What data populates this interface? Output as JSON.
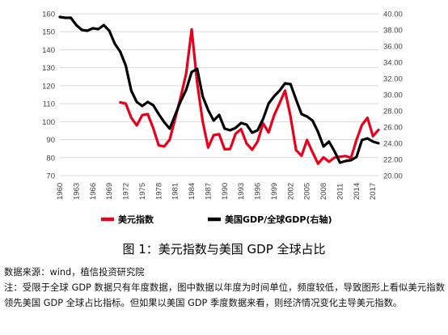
{
  "chart_data": {
    "type": "line",
    "x": [
      "1960",
      "1961",
      "1962",
      "1963",
      "1964",
      "1965",
      "1966",
      "1967",
      "1968",
      "1969",
      "1970",
      "1971",
      "1972",
      "1973",
      "1974",
      "1975",
      "1976",
      "1977",
      "1978",
      "1979",
      "1980",
      "1981",
      "1982",
      "1983",
      "1984",
      "1985",
      "1986",
      "1987",
      "1988",
      "1989",
      "1990",
      "1991",
      "1992",
      "1993",
      "1994",
      "1995",
      "1996",
      "1997",
      "1998",
      "1999",
      "2000",
      "2001",
      "2002",
      "2003",
      "2004",
      "2005",
      "2006",
      "2007",
      "2008",
      "2009",
      "2010",
      "2011",
      "2012",
      "2013",
      "2014",
      "2015",
      "2016",
      "2017",
      "2018"
    ],
    "x_tick_labels": [
      "1960",
      "1963",
      "1966",
      "1969",
      "1972",
      "1975",
      "1978",
      "1981",
      "1984",
      "1987",
      "1990",
      "1993",
      "1996",
      "1999",
      "2002",
      "2005",
      "2008",
      "2011",
      "2014",
      "2017"
    ],
    "y_left": {
      "ylim": [
        70,
        160
      ],
      "ticks": [
        "70",
        "80",
        "90",
        "100",
        "110",
        "120",
        "130",
        "140",
        "150",
        "160"
      ]
    },
    "y_right": {
      "ylim": [
        20,
        40
      ],
      "ticks": [
        "20.00",
        "22.00",
        "24.00",
        "26.00",
        "28.00",
        "30.00",
        "32.00",
        "34.00",
        "36.00",
        "38.00",
        "40.00"
      ]
    },
    "grid": true,
    "legend_position": "bottom",
    "series": [
      {
        "name": "美元指数",
        "axis": "left",
        "color": "#e8001c",
        "values": [
          null,
          null,
          null,
          null,
          null,
          null,
          null,
          null,
          null,
          null,
          null,
          110.7,
          110.0,
          102.2,
          97.9,
          103.6,
          104.2,
          96.4,
          86.8,
          86.2,
          90.0,
          101.7,
          113.6,
          126.8,
          151.3,
          121.5,
          100.2,
          85.6,
          92.5,
          93.0,
          84.6,
          84.8,
          93.3,
          95.8,
          87.8,
          84.4,
          88.9,
          99.0,
          94.0,
          103.5,
          110.2,
          117.3,
          102.8,
          84.2,
          81.0,
          89.8,
          83.0,
          76.6,
          80.1,
          77.7,
          80.0,
          80.5,
          80.9,
          79.8,
          89.8,
          98.2,
          102.1,
          91.9,
          95.4
        ]
      },
      {
        "name": "美国GDP/全球GDP(右轴)",
        "axis": "right",
        "color": "#000000",
        "values": [
          39.6,
          39.5,
          39.5,
          38.6,
          38.0,
          37.9,
          38.2,
          38.1,
          38.6,
          37.9,
          36.3,
          35.3,
          33.6,
          30.5,
          29.1,
          28.6,
          29.1,
          28.7,
          27.6,
          26.6,
          25.8,
          27.5,
          29.2,
          30.6,
          32.8,
          33.2,
          29.8,
          28.1,
          26.8,
          27.5,
          25.8,
          25.6,
          25.9,
          26.5,
          26.3,
          25.3,
          25.6,
          27.0,
          28.9,
          29.8,
          30.5,
          31.4,
          31.3,
          29.4,
          27.6,
          27.3,
          26.8,
          25.4,
          23.6,
          24.2,
          23.0,
          21.6,
          21.8,
          21.9,
          22.3,
          24.4,
          24.6,
          24.2,
          24.0
        ]
      }
    ]
  },
  "figure": {
    "caption": "图 1：美元指数与美国 GDP 全球占比",
    "source": "数据来源：wind，植信投资研究院",
    "note": "注：受限于全球 GDP 数据只有年度数据，图中数据以年度为时间单位，频度较低，导致图形上看似美元指数领先美国 GDP 全球占比指标。但如果以美国 GDP 季度数据来看，则经济情况变化主导美元指数。"
  }
}
